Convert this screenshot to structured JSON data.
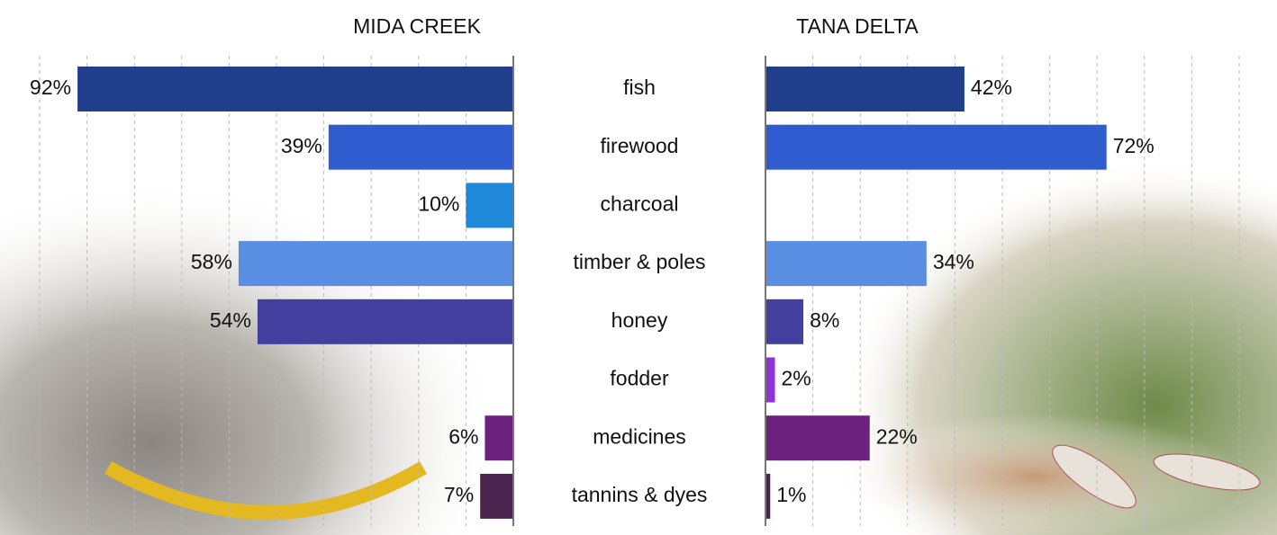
{
  "chart_data": {
    "type": "butterfly",
    "categories": [
      "fish",
      "firewood",
      "charcoal",
      "timber & poles",
      "honey",
      "fodder",
      "medicines",
      "tannins & dyes"
    ],
    "colors": [
      "#213e8c",
      "#2f5ccf",
      "#1f88d9",
      "#5a8ee3",
      "#433f9e",
      "#8f32d6",
      "#6c217f",
      "#4b2450"
    ],
    "series": [
      {
        "name": "MIDA CREEK",
        "side": "left",
        "values": [
          92,
          39,
          10,
          58,
          54,
          null,
          6,
          7
        ],
        "value_labels": [
          "92%",
          "39%",
          "10%",
          "58%",
          "54%",
          null,
          "6%",
          "7%"
        ]
      },
      {
        "name": "TANA DELTA",
        "side": "right",
        "values": [
          42,
          72,
          null,
          34,
          8,
          2,
          22,
          1
        ],
        "value_labels": [
          "42%",
          "72%",
          null,
          "34%",
          "8%",
          "2%",
          "22%",
          "1%"
        ]
      }
    ],
    "xlim": [
      0,
      100
    ],
    "xticks": [
      0,
      10,
      20,
      30,
      40,
      50,
      60,
      70,
      80,
      90,
      100
    ],
    "grid": true
  }
}
